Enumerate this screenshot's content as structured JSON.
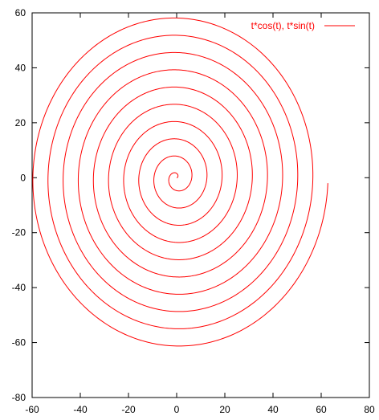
{
  "chart_data": {
    "type": "line",
    "xlim": [
      -60,
      80
    ],
    "ylim": [
      -80,
      60
    ],
    "x_ticks": [
      "-60",
      "-40",
      "-20",
      "0",
      "20",
      "40",
      "60",
      "80"
    ],
    "y_ticks": [
      "60",
      "40",
      "20",
      "0",
      "-20",
      "-40",
      "-60",
      "-80"
    ],
    "grid": false,
    "legend_position": "top-right",
    "series": [
      {
        "name": "t*cos(t), t*sin(t)",
        "color": "#ff0000",
        "x_expression": "t*cos(t)",
        "y_expression": "t*sin(t)",
        "t_range": [
          0,
          62.8
        ]
      }
    ]
  }
}
